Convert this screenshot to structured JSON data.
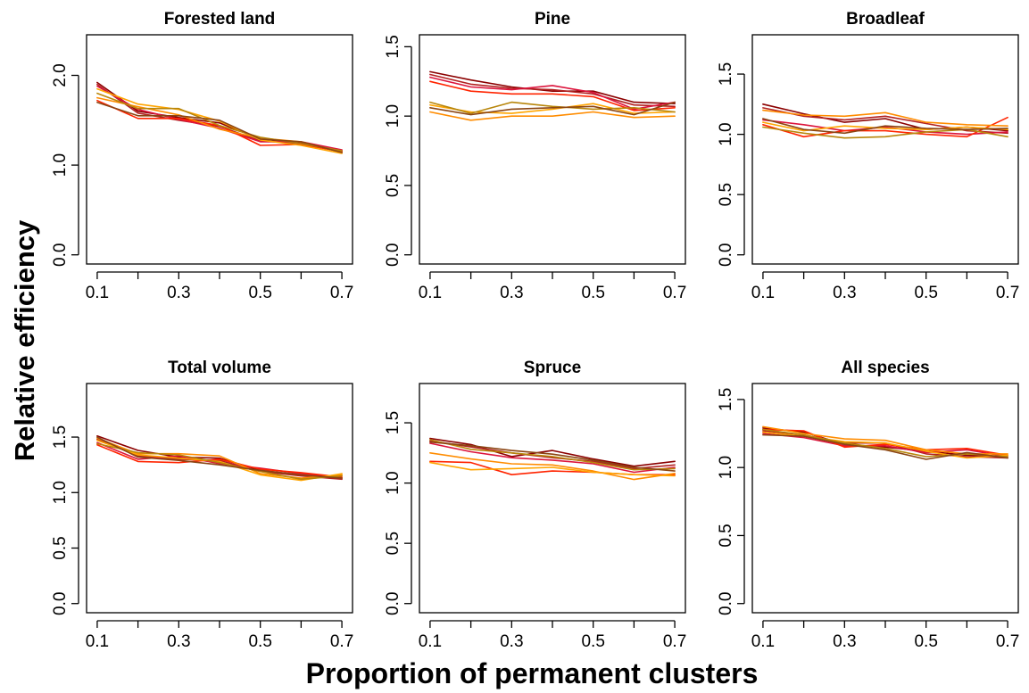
{
  "figure": {
    "ylabel": "Relative efficiency",
    "xlabel": "Proportion of permanent clusters"
  },
  "colors": [
    "#8b0000",
    "#b22222",
    "#dc143c",
    "#ff2400",
    "#ff8c00",
    "#ffa500",
    "#b8860b",
    "#8b4513"
  ],
  "chart_data": [
    {
      "type": "line",
      "title": "Forested land",
      "x": [
        0.1,
        0.2,
        0.3,
        0.4,
        0.5,
        0.6,
        0.7
      ],
      "xticks": [
        "0.1",
        "0.3",
        "0.5",
        "0.7"
      ],
      "ylim": [
        0.0,
        2.35
      ],
      "yticks": [
        "0.0",
        "1.0",
        "2.0"
      ],
      "series": [
        {
          "values": [
            1.92,
            1.6,
            1.53,
            1.47,
            1.29,
            1.25,
            1.16
          ]
        },
        {
          "values": [
            1.9,
            1.58,
            1.5,
            1.43,
            1.27,
            1.24,
            1.15
          ]
        },
        {
          "values": [
            1.88,
            1.62,
            1.51,
            1.41,
            1.26,
            1.26,
            1.17
          ]
        },
        {
          "values": [
            1.72,
            1.52,
            1.52,
            1.44,
            1.22,
            1.23,
            1.15
          ]
        },
        {
          "values": [
            1.75,
            1.65,
            1.56,
            1.4,
            1.3,
            1.26,
            1.14
          ]
        },
        {
          "values": [
            1.85,
            1.68,
            1.62,
            1.49,
            1.28,
            1.22,
            1.13
          ]
        },
        {
          "values": [
            1.8,
            1.63,
            1.63,
            1.44,
            1.31,
            1.24,
            1.16
          ]
        },
        {
          "values": [
            1.7,
            1.55,
            1.55,
            1.5,
            1.29,
            1.26,
            1.14
          ]
        }
      ]
    },
    {
      "type": "line",
      "title": "Pine",
      "x": [
        0.1,
        0.2,
        0.3,
        0.4,
        0.5,
        0.6,
        0.7
      ],
      "xticks": [
        "0.1",
        "0.3",
        "0.5",
        "0.7"
      ],
      "ylim": [
        0.0,
        1.52
      ],
      "yticks": [
        "0.0",
        "0.5",
        "1.0",
        "1.5"
      ],
      "series": [
        {
          "values": [
            1.32,
            1.26,
            1.21,
            1.18,
            1.18,
            1.1,
            1.09
          ]
        },
        {
          "values": [
            1.3,
            1.23,
            1.2,
            1.19,
            1.16,
            1.08,
            1.07
          ]
        },
        {
          "values": [
            1.28,
            1.21,
            1.19,
            1.22,
            1.17,
            1.05,
            1.1
          ]
        },
        {
          "values": [
            1.25,
            1.18,
            1.16,
            1.16,
            1.14,
            1.04,
            1.06
          ]
        },
        {
          "values": [
            1.03,
            0.97,
            1.0,
            1.0,
            1.03,
            0.99,
            1.0
          ]
        },
        {
          "values": [
            1.08,
            1.03,
            1.02,
            1.05,
            1.09,
            1.02,
            1.03
          ]
        },
        {
          "values": [
            1.1,
            1.02,
            1.1,
            1.07,
            1.05,
            1.06,
            1.03
          ]
        },
        {
          "values": [
            1.06,
            1.01,
            1.05,
            1.06,
            1.07,
            1.01,
            1.1
          ]
        }
      ]
    },
    {
      "type": "line",
      "title": "Broadleaf",
      "x": [
        0.1,
        0.2,
        0.3,
        0.4,
        0.5,
        0.6,
        0.7
      ],
      "xticks": [
        "0.1",
        "0.3",
        "0.5",
        "0.7"
      ],
      "ylim": [
        0.0,
        1.75
      ],
      "yticks": [
        "0.0",
        "0.5",
        "1.0",
        "1.5"
      ],
      "series": [
        {
          "values": [
            1.25,
            1.17,
            1.1,
            1.13,
            1.04,
            1.06,
            1.03
          ]
        },
        {
          "values": [
            1.22,
            1.15,
            1.12,
            1.15,
            1.09,
            1.03,
            1.01
          ]
        },
        {
          "values": [
            1.12,
            1.08,
            1.03,
            1.06,
            1.02,
            1.0,
            1.02
          ]
        },
        {
          "values": [
            1.08,
            0.98,
            1.03,
            1.03,
            1.0,
            0.98,
            1.14
          ]
        },
        {
          "values": [
            1.2,
            1.16,
            1.15,
            1.18,
            1.1,
            1.08,
            1.07
          ]
        },
        {
          "values": [
            1.1,
            1.03,
            1.07,
            1.05,
            1.04,
            1.06,
            1.04
          ]
        },
        {
          "values": [
            1.06,
            1.01,
            0.97,
            0.98,
            1.02,
            1.04,
            0.98
          ]
        },
        {
          "values": [
            1.13,
            1.04,
            1.01,
            1.07,
            1.05,
            1.04,
            1.05
          ]
        }
      ]
    },
    {
      "type": "line",
      "title": "Total volume",
      "x": [
        0.1,
        0.2,
        0.3,
        0.4,
        0.5,
        0.6,
        0.7
      ],
      "xticks": [
        "0.1",
        "0.3",
        "0.5",
        "0.7"
      ],
      "ylim": [
        0.0,
        1.9
      ],
      "yticks": [
        "0.0",
        "0.5",
        "1.0",
        "1.5"
      ],
      "series": [
        {
          "values": [
            1.51,
            1.38,
            1.32,
            1.31,
            1.2,
            1.16,
            1.13
          ]
        },
        {
          "values": [
            1.48,
            1.33,
            1.3,
            1.29,
            1.19,
            1.15,
            1.12
          ]
        },
        {
          "values": [
            1.45,
            1.3,
            1.33,
            1.26,
            1.22,
            1.17,
            1.13
          ]
        },
        {
          "values": [
            1.43,
            1.28,
            1.27,
            1.3,
            1.21,
            1.18,
            1.14
          ]
        },
        {
          "values": [
            1.49,
            1.35,
            1.35,
            1.33,
            1.17,
            1.13,
            1.16
          ]
        },
        {
          "values": [
            1.47,
            1.34,
            1.31,
            1.28,
            1.16,
            1.11,
            1.17
          ]
        },
        {
          "values": [
            1.44,
            1.36,
            1.34,
            1.27,
            1.19,
            1.12,
            1.15
          ]
        },
        {
          "values": [
            1.5,
            1.32,
            1.29,
            1.25,
            1.2,
            1.16,
            1.13
          ]
        }
      ]
    },
    {
      "type": "line",
      "title": "Spruce",
      "x": [
        0.1,
        0.2,
        0.3,
        0.4,
        0.5,
        0.6,
        0.7
      ],
      "xticks": [
        "0.1",
        "0.3",
        "0.5",
        "0.7"
      ],
      "ylim": [
        0.0,
        1.75
      ],
      "yticks": [
        "0.0",
        "0.5",
        "1.0",
        "1.5"
      ],
      "series": [
        {
          "values": [
            1.37,
            1.32,
            1.22,
            1.27,
            1.2,
            1.14,
            1.18
          ]
        },
        {
          "values": [
            1.35,
            1.3,
            1.25,
            1.21,
            1.18,
            1.12,
            1.15
          ]
        },
        {
          "values": [
            1.33,
            1.26,
            1.21,
            1.19,
            1.16,
            1.09,
            1.13
          ]
        },
        {
          "values": [
            1.18,
            1.17,
            1.07,
            1.1,
            1.09,
            1.07,
            1.07
          ]
        },
        {
          "values": [
            1.25,
            1.2,
            1.16,
            1.15,
            1.1,
            1.03,
            1.08
          ]
        },
        {
          "values": [
            1.17,
            1.11,
            1.12,
            1.13,
            1.09,
            1.07,
            1.06
          ]
        },
        {
          "values": [
            1.36,
            1.28,
            1.25,
            1.22,
            1.17,
            1.11,
            1.12
          ]
        },
        {
          "values": [
            1.34,
            1.31,
            1.27,
            1.24,
            1.19,
            1.13,
            1.1
          ]
        }
      ]
    },
    {
      "type": "line",
      "title": "All species",
      "x": [
        0.1,
        0.2,
        0.3,
        0.4,
        0.5,
        0.6,
        0.7
      ],
      "xticks": [
        "0.1",
        "0.3",
        "0.5",
        "0.7"
      ],
      "ylim": [
        0.0,
        1.55
      ],
      "yticks": [
        "0.0",
        "0.5",
        "1.0",
        "1.5"
      ],
      "series": [
        {
          "values": [
            1.29,
            1.26,
            1.17,
            1.15,
            1.12,
            1.09,
            1.08
          ]
        },
        {
          "values": [
            1.27,
            1.24,
            1.18,
            1.18,
            1.1,
            1.08,
            1.07
          ]
        },
        {
          "values": [
            1.25,
            1.22,
            1.16,
            1.16,
            1.11,
            1.13,
            1.08
          ]
        },
        {
          "values": [
            1.28,
            1.27,
            1.15,
            1.17,
            1.13,
            1.14,
            1.09
          ]
        },
        {
          "values": [
            1.3,
            1.25,
            1.21,
            1.2,
            1.13,
            1.1,
            1.1
          ]
        },
        {
          "values": [
            1.26,
            1.23,
            1.19,
            1.18,
            1.12,
            1.07,
            1.09
          ]
        },
        {
          "values": [
            1.28,
            1.24,
            1.18,
            1.14,
            1.08,
            1.1,
            1.08
          ]
        },
        {
          "values": [
            1.24,
            1.23,
            1.17,
            1.13,
            1.06,
            1.11,
            1.07
          ]
        }
      ]
    }
  ]
}
